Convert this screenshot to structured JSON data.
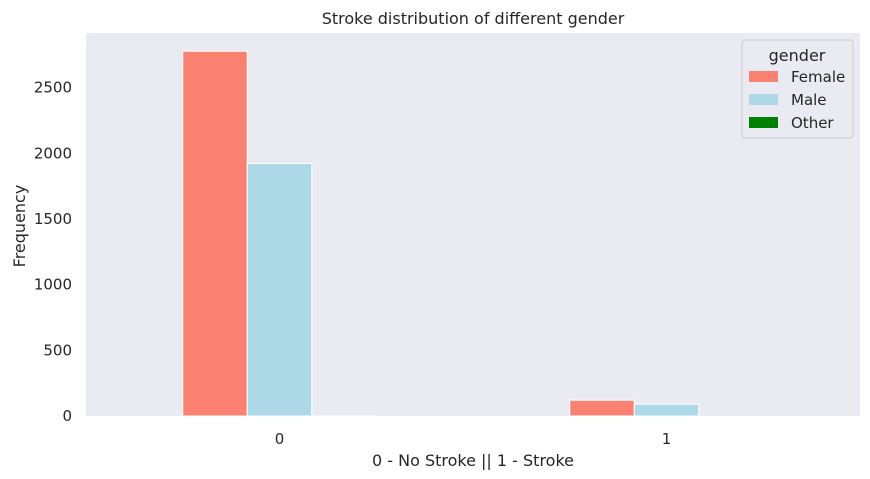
{
  "chart_data": {
    "type": "bar",
    "title": "Stroke distribution of different gender",
    "xlabel": "0 - No Stroke || 1 - Stroke",
    "ylabel": "Frequency",
    "categories": [
      "0",
      "1"
    ],
    "series": [
      {
        "name": "Female",
        "values": [
          2777,
          120
        ],
        "color": "#fa8072"
      },
      {
        "name": "Male",
        "values": [
          1922,
          90
        ],
        "color": "#add8e6"
      },
      {
        "name": "Other",
        "values": [
          1,
          0
        ],
        "color": "#008000"
      }
    ],
    "ylim": [
      0,
      2916
    ],
    "yticks": [
      "0",
      "500",
      "1000",
      "1500",
      "2000",
      "2500"
    ],
    "grid": false,
    "legend": {
      "title": "gender",
      "placement": "top-right"
    },
    "background": "#eaeaf2"
  }
}
